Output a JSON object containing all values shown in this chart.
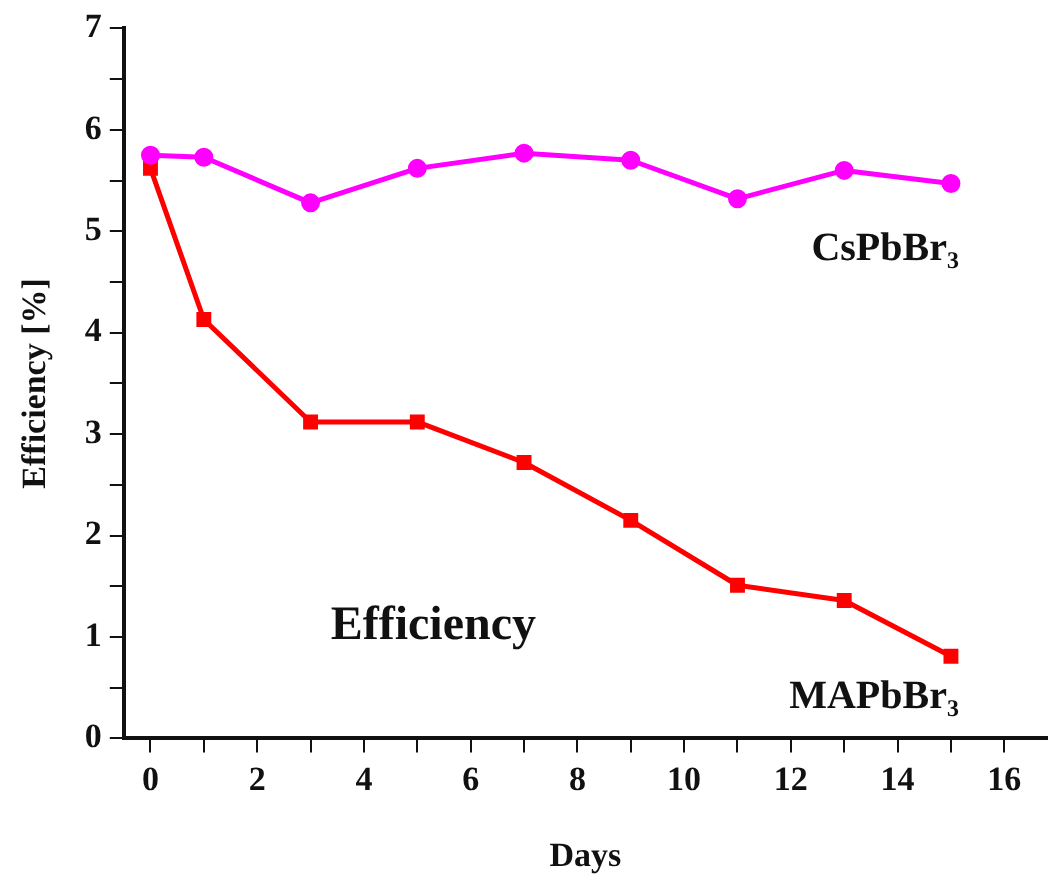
{
  "chart_data": {
    "type": "line",
    "xlabel": "Days",
    "ylabel": "Efficiency [%]",
    "annotations": [
      "Efficiency"
    ],
    "x": [
      0,
      1,
      3,
      5,
      7,
      9,
      11,
      13,
      15
    ],
    "series": [
      {
        "name": "CsPbBr₃",
        "color": "#ff00ff",
        "marker": "circle",
        "values": [
          5.75,
          5.73,
          5.28,
          5.62,
          5.77,
          5.7,
          5.32,
          5.6,
          5.47
        ]
      },
      {
        "name": "MAPbBr₃",
        "color": "#ff0000",
        "marker": "square",
        "values": [
          5.62,
          4.13,
          3.12,
          3.12,
          2.72,
          2.15,
          1.51,
          1.36,
          0.81
        ]
      }
    ],
    "xlim": [
      -0.5,
      16.8
    ],
    "xticks": [
      0,
      2,
      4,
      6,
      8,
      10,
      12,
      14,
      16
    ],
    "ylim": [
      0,
      7
    ],
    "yticks": [
      0,
      1,
      2,
      3,
      4,
      5,
      6,
      7
    ],
    "grid": false,
    "legend": false
  }
}
